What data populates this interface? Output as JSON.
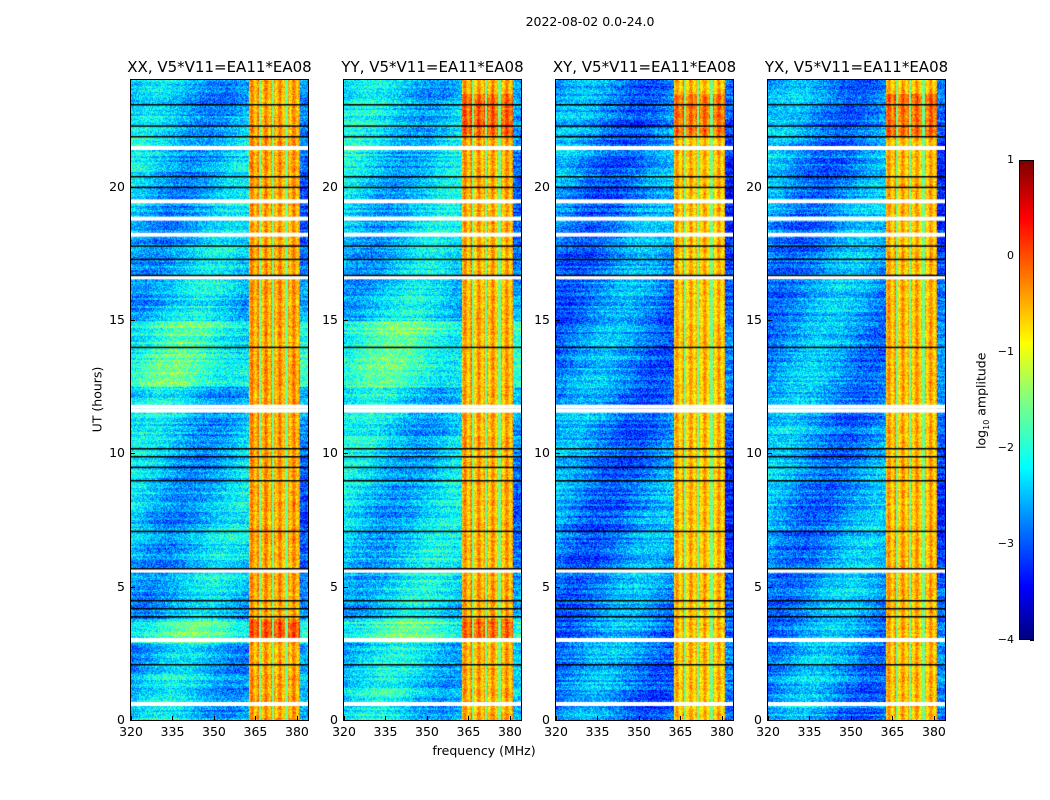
{
  "suptitle": "2022-08-02 0.0-24.0",
  "chart_data": {
    "type": "heatmap",
    "xlabel": "frequency (MHz)",
    "ylabel": "UT (hours)",
    "xlim": [
      320,
      384
    ],
    "ylim": [
      0,
      24
    ],
    "xticks": [
      "320",
      "335",
      "350",
      "365",
      "380"
    ],
    "xtick_values": [
      320,
      335,
      350,
      365,
      380
    ],
    "yticks": [
      "0",
      "5",
      "10",
      "15",
      "20"
    ],
    "ytick_values": [
      0,
      5,
      10,
      15,
      20
    ],
    "colorbar": {
      "label_main": "log",
      "label_sub": "10",
      "label_rest": " amplitude",
      "clim": [
        -4,
        1
      ],
      "ticks": [
        "1",
        "0",
        "−1",
        "−2",
        "−3",
        "−4"
      ],
      "tick_values": [
        1,
        0,
        -1,
        -2,
        -3,
        -4
      ],
      "colormap": "jet"
    },
    "rfi_band_mhz": [
      362.5,
      381
    ],
    "band_gaps_mhz": [
      366.5,
      371.2,
      376
    ],
    "flagged_hours_white": [
      21.45,
      19.45,
      18.8,
      18.2,
      16.6,
      11.75,
      11.6,
      5.6,
      3.0,
      0.6
    ],
    "flagged_hours_black": [
      23.1,
      22.3,
      21.9,
      20.4,
      20.0,
      17.8,
      17.3,
      16.7,
      14.0,
      10.2,
      9.9,
      9.5,
      9.0,
      7.1,
      5.7,
      4.5,
      4.2,
      3.9,
      2.1
    ],
    "panels": [
      {
        "title": "XX, V5*V11=EA11*EA08",
        "background_level": -2.4,
        "band_level": -0.4
      },
      {
        "title": "YY, V5*V11=EA11*EA08",
        "background_level": -2.3,
        "band_level": -0.45
      },
      {
        "title": "XY, V5*V11=EA11*EA08",
        "background_level": -2.7,
        "band_level": -0.55
      },
      {
        "title": "YX, V5*V11=EA11*EA08",
        "background_level": -2.6,
        "band_level": -0.5
      }
    ]
  }
}
